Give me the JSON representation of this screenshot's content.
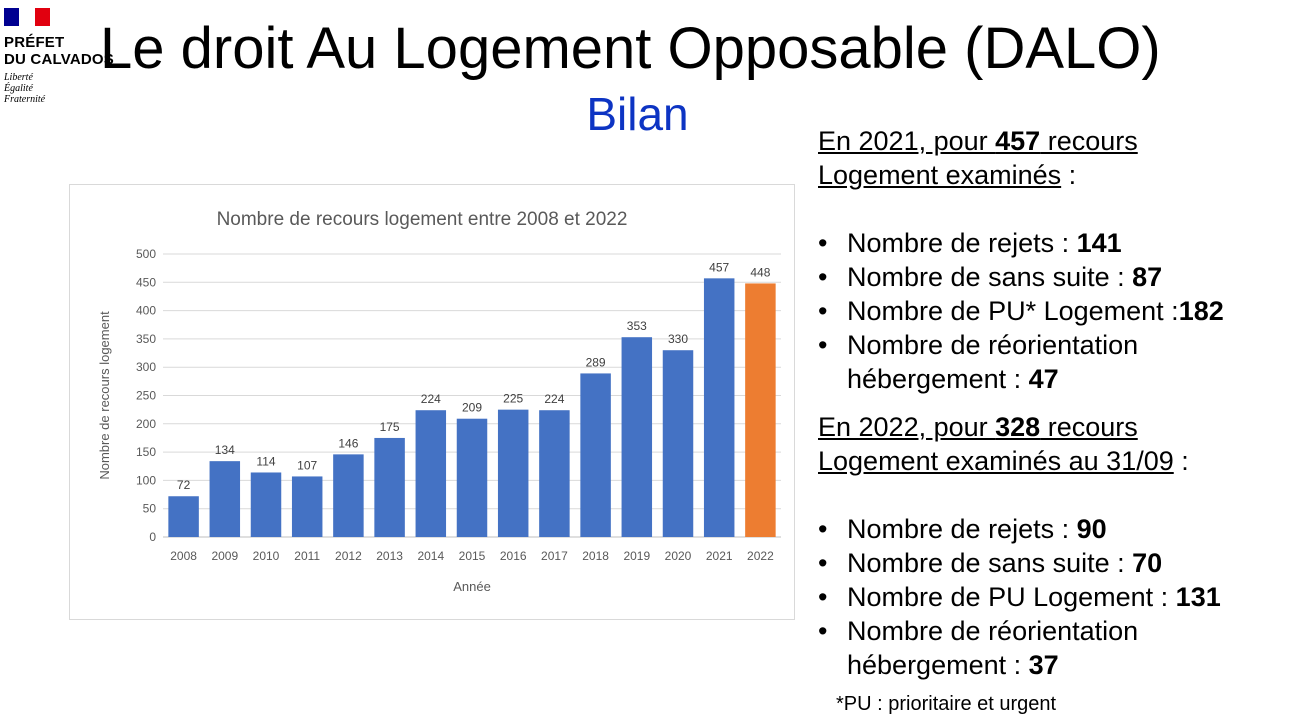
{
  "logo": {
    "line1": "PRÉFET",
    "line2": "DU CALVADOS",
    "motto1": "Liberté",
    "motto2": "Égalité",
    "motto3": "Fraternité"
  },
  "title": "Le droit Au Logement Opposable (DALO)",
  "subtitle": "Bilan",
  "chart_data": {
    "type": "bar",
    "title": "Nombre de recours logement entre 2008 et 2022",
    "xlabel": "Année",
    "ylabel": "Nombre de recours logement",
    "ylim": [
      0,
      500
    ],
    "yticks": [
      0,
      50,
      100,
      150,
      200,
      250,
      300,
      350,
      400,
      450,
      500
    ],
    "categories": [
      "2008",
      "2009",
      "2010",
      "2011",
      "2012",
      "2013",
      "2014",
      "2015",
      "2016",
      "2017",
      "2018",
      "2019",
      "2020",
      "2021",
      "2022"
    ],
    "values": [
      72,
      134,
      114,
      107,
      146,
      175,
      224,
      209,
      225,
      224,
      289,
      353,
      330,
      457,
      448
    ],
    "colors": {
      "default": "#4472c4",
      "highlight": "#ed7d31"
    },
    "highlight_index": 14,
    "grid": true,
    "data_labels": true
  },
  "section2021": {
    "head_pre": "En 2021, pour ",
    "head_num": "457",
    "head_post": " recours",
    "head_line2": "Logement examinés",
    "head_colon": " :",
    "items": [
      {
        "label": "Nombre de rejets : ",
        "value": "141"
      },
      {
        "label": "Nombre de sans suite : ",
        "value": "87"
      },
      {
        "label": "Nombre de PU* Logement :",
        "value": "182"
      },
      {
        "label": "Nombre de réorientation hébergement : ",
        "value": "47"
      }
    ]
  },
  "section2022": {
    "head_pre": "En 2022, pour ",
    "head_num": "328",
    "head_post": " recours ",
    "head_line2": "Logement examinés au 31/09",
    "head_colon": " :",
    "items": [
      {
        "label": "Nombre de rejets : ",
        "value": "90"
      },
      {
        "label": "Nombre de sans suite : ",
        "value": "70"
      },
      {
        "label": "Nombre de PU Logement : ",
        "value": "131"
      },
      {
        "label": "Nombre de réorientation hébergement : ",
        "value": "37"
      }
    ]
  },
  "footnote": "*PU : prioritaire et urgent"
}
